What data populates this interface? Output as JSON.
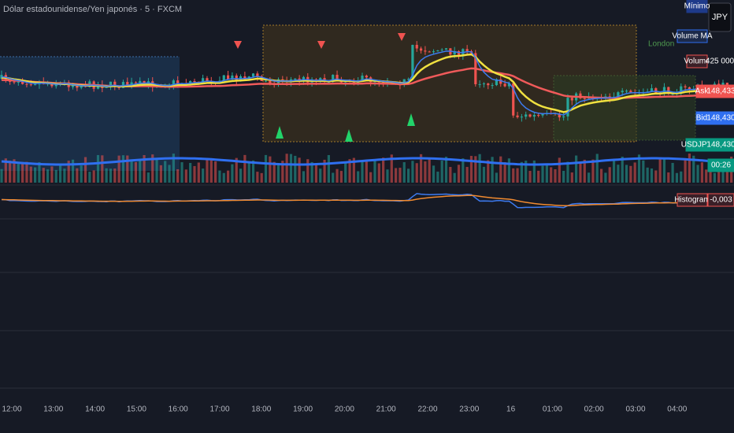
{
  "header": {
    "title": "Dólar estadounidense/Yen japonés · 5 · FXCM"
  },
  "session": {
    "label": "London"
  },
  "currency_button": "JPY",
  "right_labels": {
    "minimum": "Mínimo",
    "volume_ma": "Volume MA",
    "volume": "Volume",
    "volume_value": "425 000",
    "ask": "Ask",
    "ask_value": "148,433",
    "bid": "Bid",
    "bid_value": "148,430",
    "symbol": "USDJPY",
    "symbol_value": "148,430",
    "countdown": "00:26",
    "histogram": "Histogram",
    "histogram_value": "-0,003"
  },
  "time_axis": [
    "12:00",
    "13:00",
    "14:00",
    "15:00",
    "16:00",
    "17:00",
    "18:00",
    "19:00",
    "20:00",
    "21:00",
    "22:00",
    "23:00",
    "16",
    "01:00",
    "02:00",
    "03:00",
    "04:00"
  ]
}
